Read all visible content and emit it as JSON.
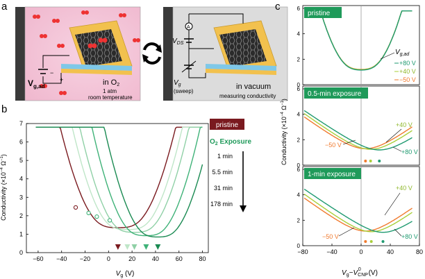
{
  "panel_a": {
    "label": "a",
    "left_vg_main": "V",
    "left_vg_sub": "g,ad",
    "plus": "+",
    "minus": "−",
    "in_o2": "in O",
    "o2_sub": "2",
    "pressure": "1 atm",
    "temperature": "room temperature",
    "vds_main": "V",
    "vds_sub": "DS",
    "ammeter": "A",
    "vg_main": "V",
    "vg_sub": "g",
    "sweep": "(sweep)",
    "in_vacuum": "in vacuum",
    "measuring": "measuring conductivity",
    "colors": {
      "pink": "#f3c6d8",
      "dark": "#3a3a3a",
      "gold": "#f2c14e",
      "blue": "#7fc8e8",
      "grey": "#d9d9d9"
    }
  },
  "panel_b": {
    "label": "b",
    "legend_pristine": "pristine",
    "legend_o2": "O",
    "legend_o2_sub": "2",
    "legend_exposure": " Exposure",
    "times": [
      "1 min",
      "5.5 min",
      "31 min",
      "178 min"
    ],
    "colors": {
      "pristine": "#7a1a1f",
      "o2": "#1f9a5a"
    }
  },
  "panel_c": {
    "label": "c",
    "pristine_label": "pristine",
    "vgad_main": "V",
    "vgad_sub": "g,ad",
    "pristine_legend": [
      "+80 V",
      "+40 V",
      "−50 V"
    ],
    "exp05_label": "0.5-min exposure",
    "exp05_p40": "+40 V",
    "exp05_m50": "−50 V",
    "exp05_p80": "+80 V",
    "exp1_label": "1-min exposure",
    "exp1_p40": "+40 V",
    "exp1_m50": "−50 V",
    "exp1_p80": "+80 V",
    "colors": {
      "p80": "#1f9a70",
      "p40": "#a8cf3a",
      "m50": "#f07a2e",
      "box": "#1f9a5a"
    }
  },
  "chart_data": [
    {
      "type": "line",
      "title": "",
      "xlabel": "Vg (V)",
      "ylabel": "Conductivity (×10−4 Ω−1)",
      "xlim": [
        -70,
        85
      ],
      "ylim": [
        0,
        7
      ],
      "xticks": [
        "−60",
        "−40",
        "−20",
        "0",
        "20",
        "40",
        "60",
        "80"
      ],
      "yticks": [
        "0",
        "1",
        "2",
        "3",
        "4",
        "5",
        "6",
        "7"
      ],
      "series": [
        {
          "name": "pristine",
          "color": "#7a1a1f",
          "cnp": 8,
          "min": 1.35,
          "k": 0.00072
        },
        {
          "name": "1 min",
          "color": "#bfe6c8",
          "cnp": 16,
          "min": 1.25,
          "k": 0.00088
        },
        {
          "name": "5.5 min",
          "color": "#8fd0a6",
          "cnp": 22,
          "min": 1.1,
          "k": 0.00092
        },
        {
          "name": "31 min",
          "color": "#3fb278",
          "cnp": 32,
          "min": 0.92,
          "k": 0.00096
        },
        {
          "name": "178 min",
          "color": "#1a8a52",
          "cnp": 42,
          "min": 0.85,
          "k": 0.001
        }
      ],
      "circle_markers": [
        {
          "x": -28,
          "y": 2.45
        },
        {
          "x": -17,
          "y": 2.15
        },
        {
          "x": -10,
          "y": 1.95
        },
        {
          "x": 1,
          "y": 1.75
        }
      ],
      "cnp_markers": [
        8,
        16,
        22,
        32,
        42
      ]
    },
    {
      "type": "line",
      "panel": "pristine",
      "xlabel": "Vg−V0CNP (V)",
      "ylabel": "Conductivity (×10−4 Ω−1)",
      "xlim": [
        -80,
        80
      ],
      "ylim": [
        0,
        6
      ],
      "xticks": [
        "−80",
        "−40",
        "0",
        "40",
        "80"
      ],
      "yticks": [
        "0",
        "2",
        "4",
        "6"
      ],
      "series": [
        {
          "name": "+80 V",
          "color": "#1f9a70",
          "cnp": 0,
          "min": 1.15
        },
        {
          "name": "+40 V",
          "color": "#a8cf3a",
          "cnp": 0,
          "min": 1.18
        },
        {
          "name": "−50 V",
          "color": "#f07a2e",
          "cnp": 0,
          "min": 1.2
        }
      ]
    },
    {
      "type": "line",
      "panel": "0.5-min exposure",
      "xlim": [
        -80,
        80
      ],
      "ylim": [
        0,
        6
      ],
      "yticks": [
        "0",
        "2",
        "4",
        "6"
      ],
      "series": [
        {
          "name": "+80 V",
          "color": "#1f9a70",
          "cnp": 25,
          "min": 1.2
        },
        {
          "name": "+40 V",
          "color": "#a8cf3a",
          "cnp": 13,
          "min": 1.25
        },
        {
          "name": "−50 V",
          "color": "#f07a2e",
          "cnp": 6,
          "min": 1.3
        }
      ],
      "cnp_markers": [
        6,
        13,
        25
      ]
    },
    {
      "type": "line",
      "panel": "1-min exposure",
      "xlim": [
        -80,
        80
      ],
      "ylim": [
        0,
        6
      ],
      "yticks": [
        "0",
        "2",
        "4",
        "6"
      ],
      "series": [
        {
          "name": "+80 V",
          "color": "#1f9a70",
          "cnp": 30,
          "min": 1.05
        },
        {
          "name": "+40 V",
          "color": "#a8cf3a",
          "cnp": 14,
          "min": 1.1
        },
        {
          "name": "−50 V",
          "color": "#f07a2e",
          "cnp": 6,
          "min": 1.15
        }
      ],
      "cnp_markers": [
        6,
        14,
        30
      ]
    }
  ]
}
